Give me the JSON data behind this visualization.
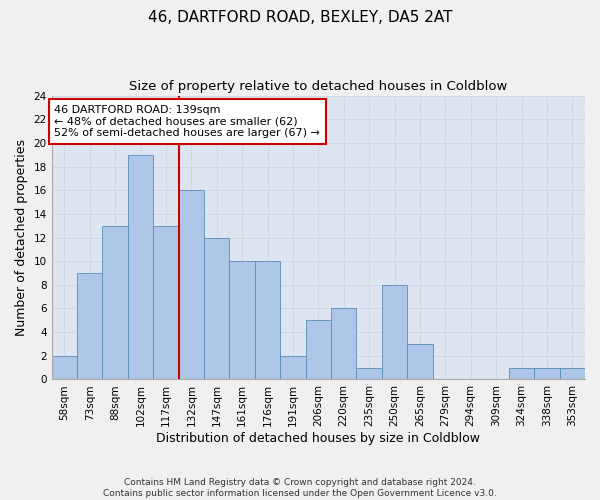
{
  "title1": "46, DARTFORD ROAD, BEXLEY, DA5 2AT",
  "title2": "Size of property relative to detached houses in Coldblow",
  "xlabel": "Distribution of detached houses by size in Coldblow",
  "ylabel": "Number of detached properties",
  "categories": [
    "58sqm",
    "73sqm",
    "88sqm",
    "102sqm",
    "117sqm",
    "132sqm",
    "147sqm",
    "161sqm",
    "176sqm",
    "191sqm",
    "206sqm",
    "220sqm",
    "235sqm",
    "250sqm",
    "265sqm",
    "279sqm",
    "294sqm",
    "309sqm",
    "324sqm",
    "338sqm",
    "353sqm"
  ],
  "values": [
    2,
    9,
    13,
    19,
    13,
    16,
    12,
    10,
    10,
    2,
    5,
    6,
    1,
    8,
    3,
    0,
    0,
    0,
    1,
    1,
    1
  ],
  "bar_color": "#aec6e8",
  "bar_edge_color": "#5b8db8",
  "vline_x_index": 4.5,
  "annotation_text_line1": "46 DARTFORD ROAD: 139sqm",
  "annotation_text_line2": "← 48% of detached houses are smaller (62)",
  "annotation_text_line3": "52% of semi-detached houses are larger (67) →",
  "annotation_box_color": "#ffffff",
  "annotation_box_edge": "#cc0000",
  "vline_color": "#cc0000",
  "ylim": [
    0,
    24
  ],
  "yticks": [
    0,
    2,
    4,
    6,
    8,
    10,
    12,
    14,
    16,
    18,
    20,
    22,
    24
  ],
  "grid_color": "#d0d8e8",
  "bg_color": "#dde5f0",
  "fig_bg_color": "#f0f0f0",
  "footnote": "Contains HM Land Registry data © Crown copyright and database right 2024.\nContains public sector information licensed under the Open Government Licence v3.0.",
  "title1_fontsize": 11,
  "title2_fontsize": 9.5,
  "xlabel_fontsize": 9,
  "ylabel_fontsize": 9,
  "tick_fontsize": 7.5,
  "annotation_fontsize": 8,
  "footnote_fontsize": 6.5
}
